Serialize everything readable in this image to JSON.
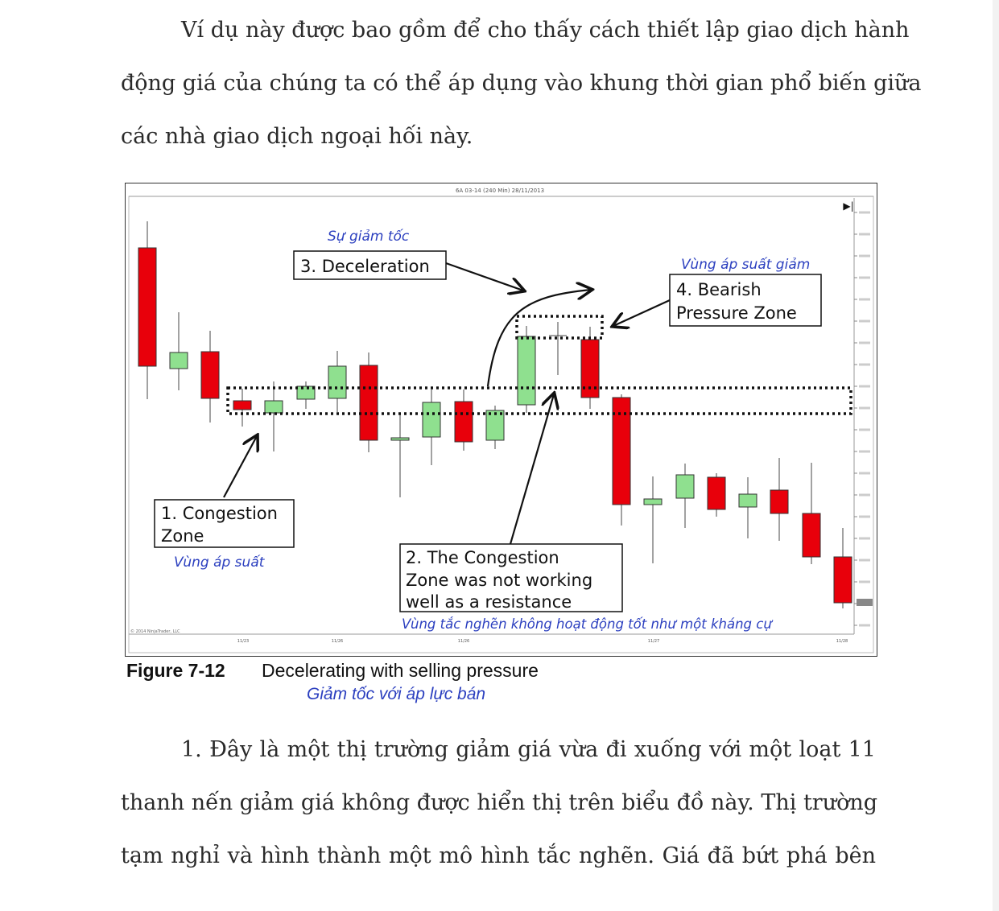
{
  "intro": {
    "lines": [
      "Ví dụ này được bao gồm để cho thấy cách thiết lập giao dịch hành",
      "động giá của chúng ta có thể áp dụng vào khung thời gian phổ biến giữa",
      "các nhà giao dịch ngoại hối này."
    ]
  },
  "figure": {
    "header": "6A 03-14 (240 Min) 28/11/2013",
    "copyright": "© 2014 NinjaTrader, LLC",
    "x_ticks": [
      "11/23",
      "11/26",
      "11/26",
      "11/27",
      "11/28"
    ],
    "play_icon": "skip-forward-icon",
    "labels": {
      "deceleration_vi": "Sự giảm tốc",
      "deceleration": "3. Deceleration",
      "bearish_vi": "Vùng áp suất giảm",
      "bearish_1": "4. Bearish",
      "bearish_2": "Pressure Zone",
      "congestion_1": "1. Congestion",
      "congestion_2": "Zone",
      "congestion_vi": "Vùng áp suất",
      "notworking_1": "2. The Congestion",
      "notworking_2": "Zone was not working",
      "notworking_3": "well as a resistance",
      "notworking_vi": "Vùng tắc nghẽn không hoạt động tốt như một kháng cự"
    },
    "colors": {
      "bull": "#8fe08f",
      "bear": "#e8000b",
      "annotation_vi": "#2b3fbf"
    }
  },
  "caption": {
    "number": "Figure 7-12",
    "title": "Decelerating with selling pressure",
    "title_vi": "Giảm tốc với áp lực bán"
  },
  "body": {
    "lines": [
      "1. Đây là một thị trường giảm giá vừa đi xuống với một loạt 11",
      "thanh nến giảm giá không được hiển thị trên biểu đồ này. Thị trường",
      "tạm nghỉ và hình thành một mô hình tắc nghẽn. Giá đã bứt phá bên"
    ]
  }
}
